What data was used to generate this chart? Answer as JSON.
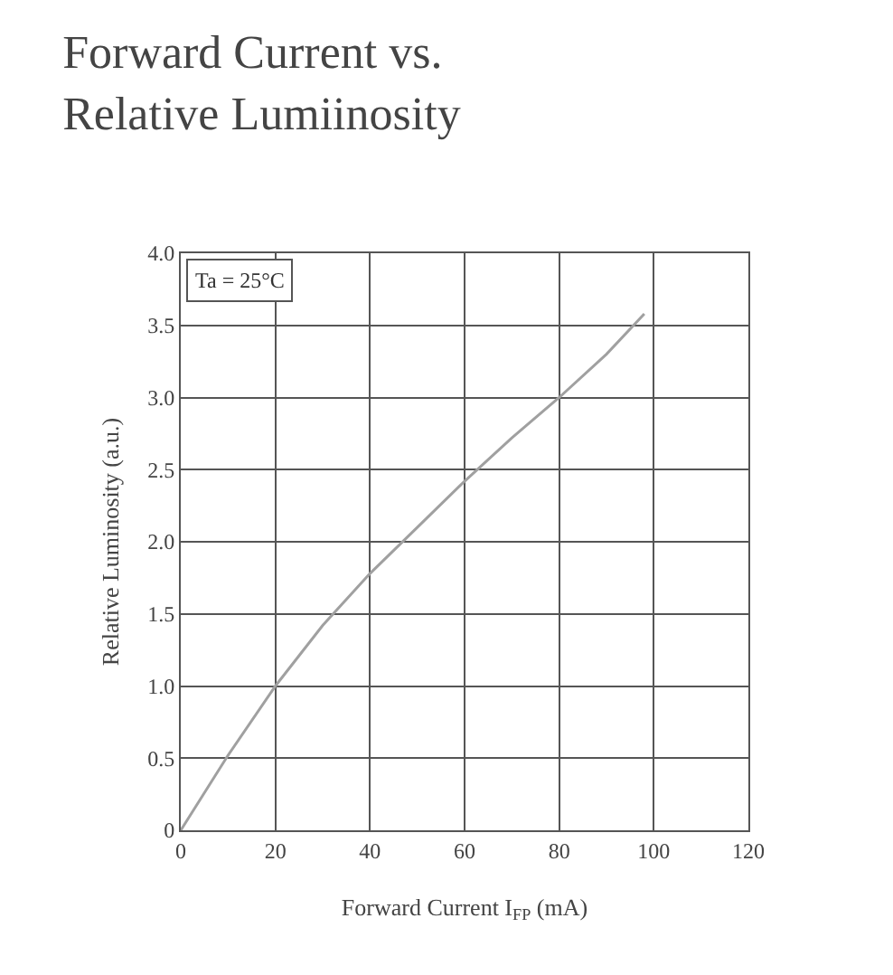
{
  "chart_data": {
    "type": "line",
    "title": "Forward Current vs.\nRelative Lumiinosity",
    "xlabel": "Forward Current I$_{FP}$ (mA)",
    "ylabel": "Relative Luminosity (a.u.)",
    "x": [
      0,
      10,
      20,
      30,
      40,
      50,
      60,
      70,
      80,
      90,
      98
    ],
    "series": [
      {
        "color": "#a0a0a0",
        "values": [
          0,
          0.52,
          1.0,
          1.42,
          1.78,
          2.1,
          2.42,
          2.72,
          3.0,
          3.3,
          3.58
        ]
      }
    ],
    "xlim": [
      0,
      120
    ],
    "xticks": [
      0,
      20,
      40,
      60,
      80,
      100,
      120
    ],
    "ylim": [
      0,
      4
    ],
    "yticks": [
      0,
      0.5,
      {
        "value": 1,
        "label": "1.0"
      },
      1.5,
      {
        "value": 2,
        "label": "2.0"
      },
      2.5,
      {
        "value": 3,
        "label": "3.0"
      },
      3.5,
      {
        "value": 4,
        "label": "4.0"
      }
    ],
    "annotations": [
      "Ta = 25°C"
    ],
    "grid": true,
    "legend": false,
    "marker": "none",
    "line_style": "solid"
  }
}
